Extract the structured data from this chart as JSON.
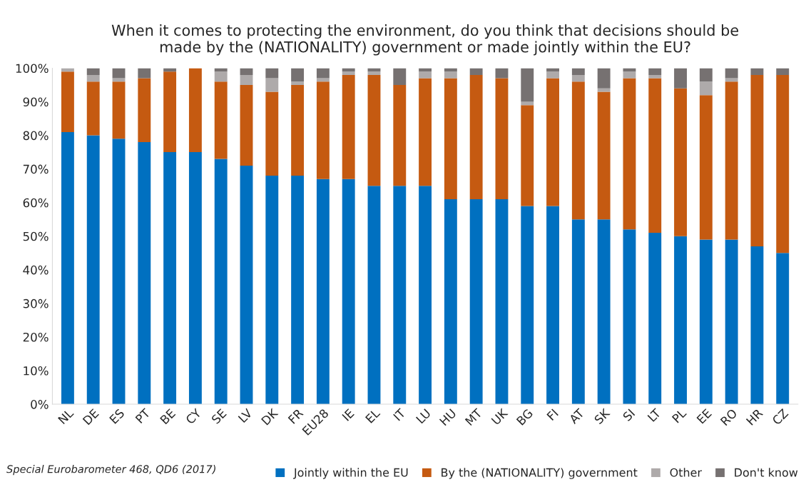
{
  "chart_data": {
    "type": "bar",
    "stacked": true,
    "title": "When it comes to protecting the environment, do you think that decisions should be\nmade by the (NATIONALITY) government or made jointly within the EU?",
    "categories": [
      "NL",
      "DE",
      "ES",
      "PT",
      "BE",
      "CY",
      "SE",
      "LV",
      "DK",
      "FR",
      "EU28",
      "IE",
      "EL",
      "IT",
      "LU",
      "HU",
      "MT",
      "UK",
      "BG",
      "FI",
      "AT",
      "SK",
      "SI",
      "LT",
      "PL",
      "EE",
      "RO",
      "HR",
      "CZ"
    ],
    "series": [
      {
        "name": "Jointly within the EU",
        "color": "#0070c0",
        "values": [
          81,
          80,
          79,
          78,
          75,
          75,
          73,
          71,
          68,
          68,
          67,
          67,
          65,
          65,
          65,
          61,
          61,
          61,
          59,
          59,
          55,
          55,
          52,
          51,
          50,
          49,
          49,
          47,
          45
        ]
      },
      {
        "name": "By the (NATIONALITY) government",
        "color": "#c55a11",
        "values": [
          18,
          16,
          17,
          19,
          24,
          25,
          23,
          24,
          25,
          27,
          29,
          31,
          33,
          30,
          32,
          36,
          37,
          36,
          30,
          38,
          41,
          38,
          45,
          46,
          44,
          43,
          47,
          51,
          53
        ]
      },
      {
        "name": "Other",
        "color": "#aeaaaa",
        "values": [
          1,
          2,
          1,
          0,
          0,
          0,
          3,
          3,
          4,
          1,
          1,
          1,
          1,
          0,
          2,
          2,
          0,
          0,
          1,
          2,
          2,
          1,
          2,
          1,
          0,
          4,
          1,
          0,
          0
        ]
      },
      {
        "name": "Don't know",
        "color": "#767171",
        "values": [
          0,
          2,
          3,
          3,
          1,
          0,
          1,
          2,
          3,
          4,
          3,
          1,
          1,
          5,
          1,
          1,
          2,
          3,
          10,
          1,
          2,
          6,
          1,
          2,
          6,
          4,
          3,
          2,
          2
        ]
      }
    ],
    "ylim": [
      0,
      100
    ],
    "yticks": [
      {
        "value": 0,
        "label": "0%"
      },
      {
        "value": 10,
        "label": "10%"
      },
      {
        "value": 20,
        "label": "20%"
      },
      {
        "value": 30,
        "label": "30%"
      },
      {
        "value": 40,
        "label": "40%"
      },
      {
        "value": 50,
        "label": "50%"
      },
      {
        "value": 60,
        "label": "60%"
      },
      {
        "value": 70,
        "label": "70%"
      },
      {
        "value": 80,
        "label": "80%"
      },
      {
        "value": 90,
        "label": "90%"
      },
      {
        "value": 100,
        "label": "100%"
      }
    ],
    "legend": "bottom",
    "grid": false,
    "annotations": [
      "Special Eurobarometer 468, QD6 (2017)"
    ]
  }
}
